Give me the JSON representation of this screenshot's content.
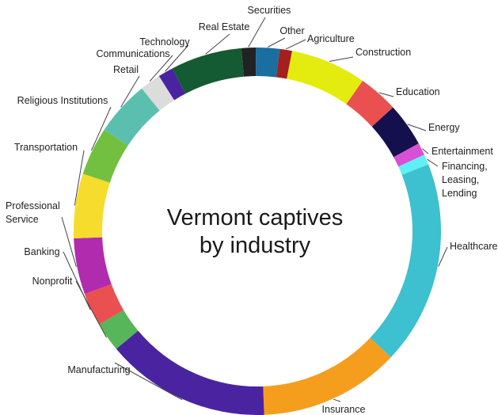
{
  "chart_data": {
    "type": "pie",
    "title": "Vermont captives by industry",
    "slices": [
      {
        "label": "Securities",
        "value": 1.5,
        "color": "#222222"
      },
      {
        "label": "Other",
        "value": 2.5,
        "color": "#1a6ea0"
      },
      {
        "label": "Agriculture",
        "value": 1.3,
        "color": "#a51f1f"
      },
      {
        "label": "Construction",
        "value": 8.0,
        "color": "#e3ec0e"
      },
      {
        "label": "Education",
        "value": 4.2,
        "color": "#ea5050"
      },
      {
        "label": "Energy",
        "value": 4.6,
        "color": "#140f4d"
      },
      {
        "label": "Entertainment",
        "value": 1.3,
        "color": "#d94fd6"
      },
      {
        "label": "Financing, Leasing, Lending",
        "value": 1.1,
        "color": "#5ff0f6"
      },
      {
        "label": "Healthcare",
        "value": 21.5,
        "color": "#3dc0cf"
      },
      {
        "label": "Insurance",
        "value": 14.8,
        "color": "#f59e1e"
      },
      {
        "label": "Manufacturing",
        "value": 17.4,
        "color": "#4a24a0"
      },
      {
        "label": "Nonprofit",
        "value": 3.1,
        "color": "#58b65a"
      },
      {
        "label": "Banking",
        "value": 3.5,
        "color": "#ea5050"
      },
      {
        "label": "Professional Service",
        "value": 5.9,
        "color": "#b02bad"
      },
      {
        "label": "Transportation",
        "value": 6.8,
        "color": "#f5dc2d"
      },
      {
        "label": "Religious Institutions",
        "value": 5.1,
        "color": "#73c040"
      },
      {
        "label": "Retail",
        "value": 5.8,
        "color": "#5bbfb0"
      },
      {
        "label": "Communications",
        "value": 2.2,
        "color": "#dcdcdc"
      },
      {
        "label": "Technology",
        "value": 1.6,
        "color": "#4a24a0"
      },
      {
        "label": "Real Estate",
        "value": 7.5,
        "color": "#145a32"
      }
    ]
  }
}
